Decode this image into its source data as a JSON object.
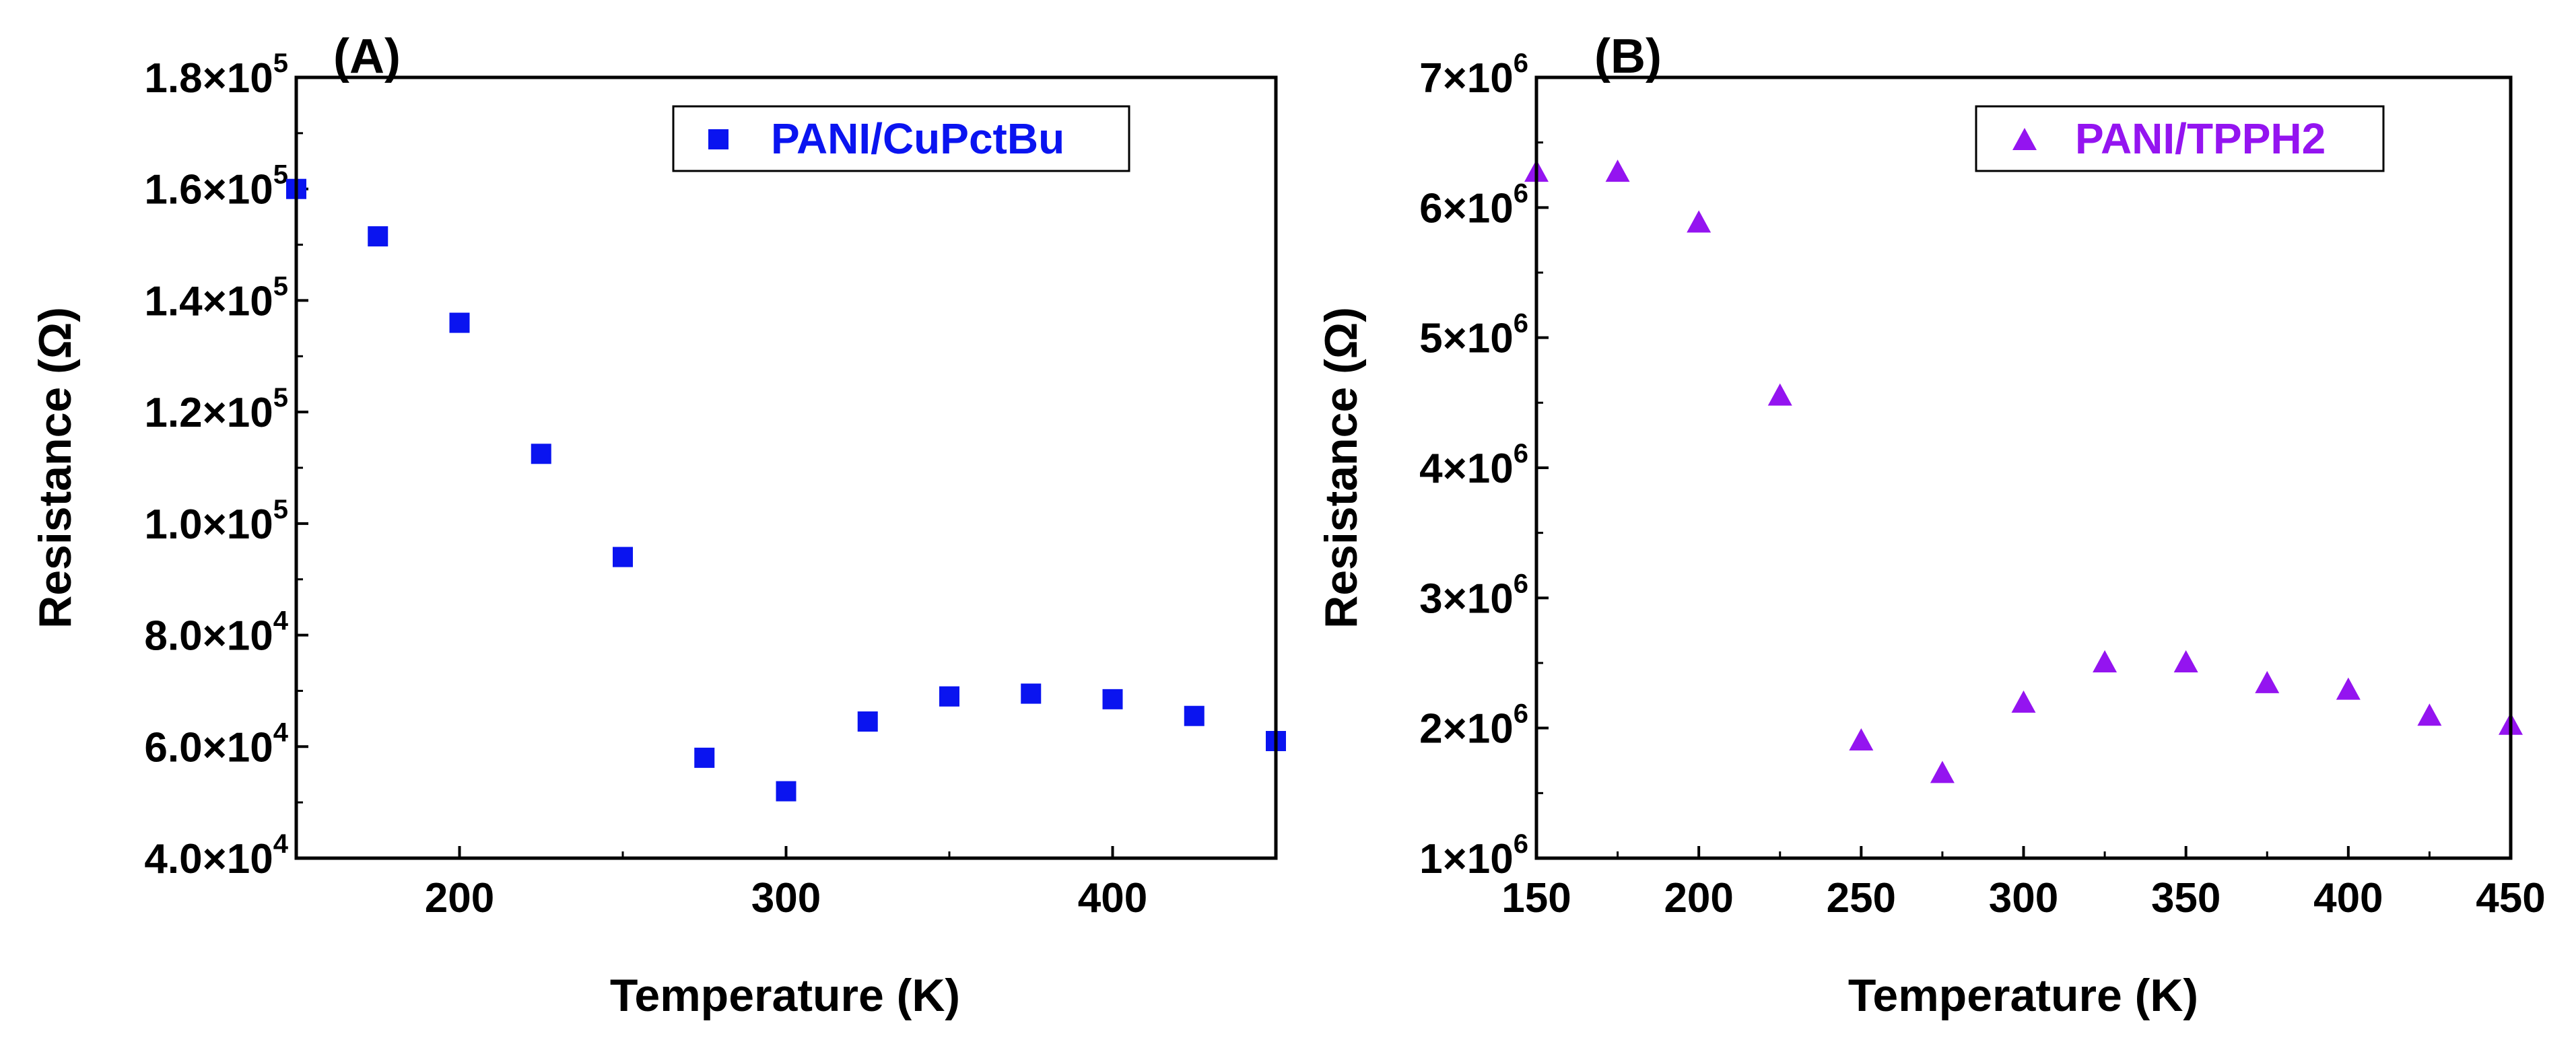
{
  "chart_data": [
    {
      "panel": "(A)",
      "type": "scatter",
      "xlabel": "Temperature (K)",
      "ylabel": "Resistance (Ω)",
      "xlim": [
        150,
        450
      ],
      "ylim": [
        40000,
        180000
      ],
      "x_ticks": [
        {
          "value": 200,
          "label": "200"
        },
        {
          "value": 300,
          "label": "300"
        },
        {
          "value": 400,
          "label": "400"
        }
      ],
      "y_ticks": [
        {
          "value": 40000,
          "mant": "4.0×10",
          "exp": "4"
        },
        {
          "value": 60000,
          "mant": "6.0×10",
          "exp": "4"
        },
        {
          "value": 80000,
          "mant": "8.0×10",
          "exp": "4"
        },
        {
          "value": 100000,
          "mant": "1.0×10",
          "exp": "5"
        },
        {
          "value": 120000,
          "mant": "1.2×10",
          "exp": "5"
        },
        {
          "value": 140000,
          "mant": "1.4×10",
          "exp": "5"
        },
        {
          "value": 160000,
          "mant": "1.6×10",
          "exp": "5"
        },
        {
          "value": 180000,
          "mant": "1.8×10",
          "exp": "5"
        }
      ],
      "legend_position": "top-right",
      "series": [
        {
          "name": "PANI/CuPctBu",
          "marker": "square",
          "color": "#0a14f0",
          "x": [
            150,
            175,
            200,
            225,
            250,
            275,
            300,
            325,
            350,
            375,
            400,
            425,
            450
          ],
          "y": [
            160000,
            151500,
            136000,
            112500,
            94000,
            58000,
            52000,
            64500,
            69000,
            69500,
            68500,
            65500,
            61000
          ]
        }
      ]
    },
    {
      "panel": "(B)",
      "type": "scatter",
      "xlabel": "Temperature (K)",
      "ylabel": "Resistance (Ω)",
      "xlim": [
        150,
        450
      ],
      "ylim": [
        1000000,
        7000000
      ],
      "x_ticks": [
        {
          "value": 150,
          "label": "150"
        },
        {
          "value": 200,
          "label": "200"
        },
        {
          "value": 250,
          "label": "250"
        },
        {
          "value": 300,
          "label": "300"
        },
        {
          "value": 350,
          "label": "350"
        },
        {
          "value": 400,
          "label": "400"
        },
        {
          "value": 450,
          "label": "450"
        }
      ],
      "y_ticks": [
        {
          "value": 1000000,
          "mant": "1×10",
          "exp": "6"
        },
        {
          "value": 2000000,
          "mant": "2×10",
          "exp": "6"
        },
        {
          "value": 3000000,
          "mant": "3×10",
          "exp": "6"
        },
        {
          "value": 4000000,
          "mant": "4×10",
          "exp": "6"
        },
        {
          "value": 5000000,
          "mant": "5×10",
          "exp": "6"
        },
        {
          "value": 6000000,
          "mant": "6×10",
          "exp": "6"
        },
        {
          "value": 7000000,
          "mant": "7×10",
          "exp": "6"
        }
      ],
      "legend_position": "top-right",
      "series": [
        {
          "name": "PANI/TPPH2",
          "marker": "triangle",
          "color": "#9414f0",
          "x": [
            150,
            175,
            200,
            225,
            250,
            275,
            300,
            325,
            350,
            375,
            400,
            425,
            450
          ],
          "y": [
            6270000,
            6270000,
            5880000,
            4550000,
            1900000,
            1650000,
            2190000,
            2500000,
            2500000,
            2340000,
            2290000,
            2090000,
            2020000
          ]
        }
      ]
    }
  ]
}
